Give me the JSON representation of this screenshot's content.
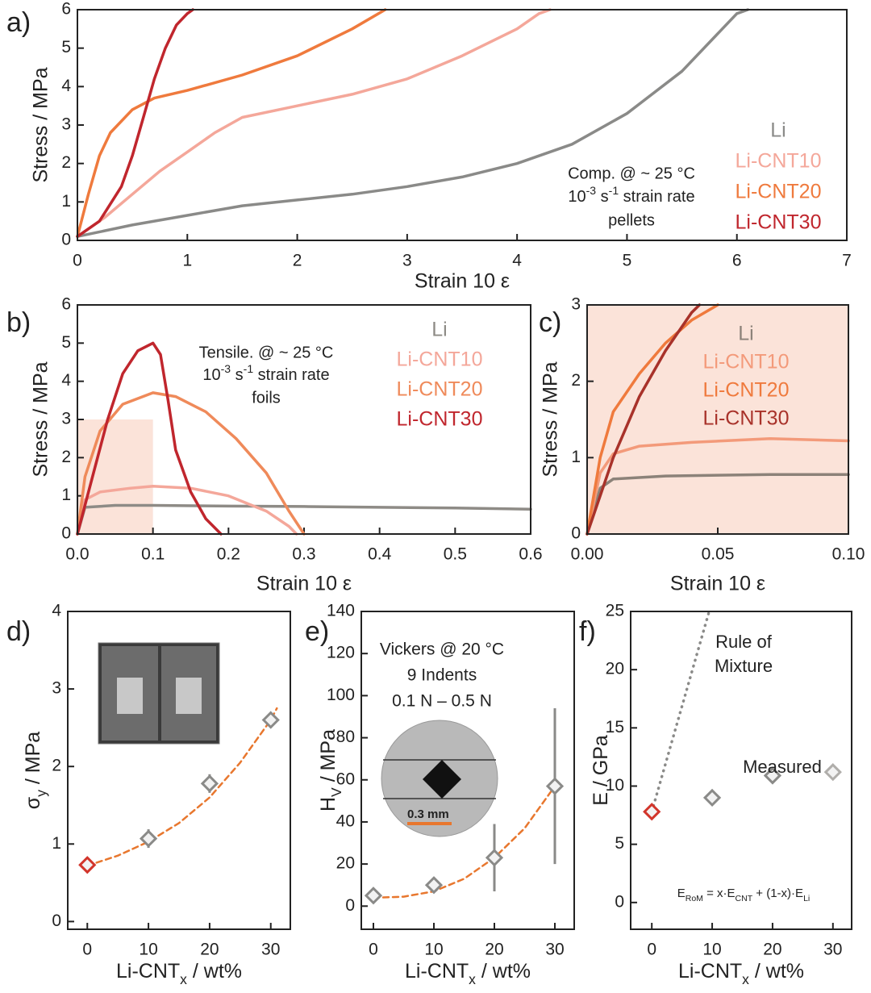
{
  "chart_data": [
    {
      "type": "line",
      "panel_label": "a)",
      "xlabel": "Strain 10 ε",
      "ylabel": "Stress / MPa",
      "xlim": [
        0,
        7
      ],
      "ylim": [
        0,
        6
      ],
      "xticks": [
        0,
        1,
        2,
        3,
        4,
        5,
        6,
        7
      ],
      "yticks": [
        0,
        1,
        2,
        3,
        4,
        5,
        6
      ],
      "series": [
        {
          "name": "Li",
          "color": "#8a8a88",
          "x": [
            0,
            0.5,
            1,
            1.5,
            2,
            2.5,
            3,
            3.5,
            4,
            4.5,
            5,
            5.5,
            6,
            6.1
          ],
          "values": [
            0.1,
            0.4,
            0.65,
            0.9,
            1.05,
            1.2,
            1.4,
            1.65,
            2.0,
            2.5,
            3.3,
            4.4,
            5.9,
            6
          ]
        },
        {
          "name": "Li-CNT10",
          "color": "#f4a79a",
          "x": [
            0,
            0.25,
            0.5,
            0.75,
            1,
            1.25,
            1.5,
            2,
            2.5,
            3,
            3.5,
            4,
            4.2,
            4.3
          ],
          "values": [
            0.1,
            0.6,
            1.2,
            1.8,
            2.3,
            2.8,
            3.2,
            3.5,
            3.8,
            4.2,
            4.8,
            5.5,
            5.9,
            6
          ]
        },
        {
          "name": "Li-CNT20",
          "color": "#ef7a3d",
          "x": [
            0,
            0.1,
            0.2,
            0.3,
            0.5,
            0.7,
            1,
            1.5,
            2,
            2.5,
            2.8
          ],
          "values": [
            0.1,
            1.2,
            2.2,
            2.8,
            3.4,
            3.7,
            3.9,
            4.3,
            4.8,
            5.5,
            6
          ]
        },
        {
          "name": "Li-CNT30",
          "color": "#c0262d",
          "x": [
            0,
            0.2,
            0.4,
            0.5,
            0.6,
            0.7,
            0.8,
            0.9,
            1.0,
            1.05
          ],
          "values": [
            0.1,
            0.5,
            1.4,
            2.2,
            3.2,
            4.2,
            5.0,
            5.6,
            5.9,
            6
          ]
        }
      ],
      "annotations": [
        [
          "Comp. @ ~ 25 °C",
          [
            {
              "text": "10"
            },
            {
              "text": "-3",
              "sup": true
            },
            {
              "text": " s"
            },
            {
              "text": "-1",
              "sup": true
            },
            {
              "text": " strain rate"
            }
          ],
          "pellets"
        ]
      ]
    },
    {
      "type": "line",
      "panel_label": "b)",
      "xlabel": "Strain 10 ε",
      "ylabel": "Stress / MPa",
      "xlim": [
        0,
        0.6
      ],
      "ylim": [
        0,
        6
      ],
      "xticks": [
        {
          "value": 0,
          "label": "0.0"
        },
        0.1,
        0.2,
        0.3,
        0.4,
        0.5,
        0.6
      ],
      "yticks": [
        0,
        1,
        2,
        3,
        4,
        5,
        6
      ],
      "zoom_region": {
        "xlim": [
          0,
          0.1
        ],
        "ylim": [
          0,
          3
        ],
        "color": "#fbe3d9"
      },
      "series": [
        {
          "name": "Li",
          "color": "#8e8b86",
          "x": [
            0,
            0.01,
            0.05,
            0.1,
            0.2,
            0.3,
            0.4,
            0.5,
            0.6
          ],
          "values": [
            0,
            0.7,
            0.75,
            0.75,
            0.73,
            0.72,
            0.7,
            0.68,
            0.65
          ]
        },
        {
          "name": "Li-CNT10",
          "color": "#f4a79a",
          "x": [
            0,
            0.01,
            0.03,
            0.07,
            0.1,
            0.15,
            0.2,
            0.25,
            0.28,
            0.29
          ],
          "values": [
            0,
            0.9,
            1.1,
            1.2,
            1.25,
            1.2,
            1.0,
            0.6,
            0.2,
            0
          ]
        },
        {
          "name": "Li-CNT20",
          "color": "#ef8a5a",
          "x": [
            0,
            0.01,
            0.03,
            0.06,
            0.1,
            0.13,
            0.17,
            0.21,
            0.25,
            0.28,
            0.3
          ],
          "values": [
            0,
            1.5,
            2.7,
            3.4,
            3.7,
            3.6,
            3.2,
            2.5,
            1.6,
            0.6,
            0
          ]
        },
        {
          "name": "Li-CNT30",
          "color": "#c0262d",
          "x": [
            0,
            0.02,
            0.04,
            0.06,
            0.08,
            0.1,
            0.11,
            0.12,
            0.13,
            0.15,
            0.17,
            0.19
          ],
          "values": [
            0,
            1.5,
            3.0,
            4.2,
            4.8,
            5.0,
            4.7,
            3.5,
            2.2,
            1.1,
            0.4,
            0
          ]
        }
      ],
      "annotations": [
        [
          "Tensile. @ ~ 25 °C",
          [
            {
              "text": "10"
            },
            {
              "text": "-3",
              "sup": true
            },
            {
              "text": " s"
            },
            {
              "text": "-1",
              "sup": true
            },
            {
              "text": " strain rate"
            }
          ],
          "foils"
        ]
      ]
    },
    {
      "type": "line",
      "panel_label": "c)",
      "xlabel": "Strain 10 ε",
      "ylabel": "Stress / MPa",
      "xlim": [
        0,
        0.1
      ],
      "ylim": [
        0,
        3
      ],
      "xticks": [
        {
          "value": 0,
          "label": "0.00"
        },
        0.05,
        {
          "value": 0.1,
          "label": "0.10"
        }
      ],
      "yticks": [
        0,
        1,
        2,
        3
      ],
      "background": "#fbe3d9",
      "series": [
        {
          "name": "Li",
          "color": "#8c8279",
          "x": [
            0,
            0.005,
            0.01,
            0.03,
            0.05,
            0.07,
            0.1
          ],
          "values": [
            0,
            0.6,
            0.72,
            0.76,
            0.77,
            0.78,
            0.78
          ]
        },
        {
          "name": "Li-CNT10",
          "color": "#f39a7a",
          "x": [
            0,
            0.005,
            0.01,
            0.02,
            0.04,
            0.07,
            0.1
          ],
          "values": [
            0,
            0.8,
            1.05,
            1.15,
            1.2,
            1.25,
            1.22
          ]
        },
        {
          "name": "Li-CNT20",
          "color": "#ef7a3d",
          "x": [
            0,
            0.005,
            0.01,
            0.02,
            0.03,
            0.04,
            0.05
          ],
          "values": [
            0,
            1.0,
            1.6,
            2.1,
            2.5,
            2.8,
            3.0
          ]
        },
        {
          "name": "Li-CNT30",
          "color": "#a8322a",
          "x": [
            0,
            0.01,
            0.02,
            0.03,
            0.04,
            0.043
          ],
          "values": [
            0,
            1.0,
            1.8,
            2.4,
            2.9,
            3.0
          ]
        }
      ],
      "annotations": []
    },
    {
      "type": "scatter",
      "panel_label": "d)",
      "xlabel": [
        {
          "text": "Li-CNT"
        },
        {
          "text": "x",
          "sub": true
        },
        {
          "text": " / wt%"
        }
      ],
      "ylabel": [
        {
          "text": "σ"
        },
        {
          "text": "y",
          "sub": true
        },
        {
          "text": " / MPa"
        }
      ],
      "xlim": [
        -3.2,
        33.2
      ],
      "ylim": [
        -0.1,
        4
      ],
      "xticks": [
        0,
        10,
        20,
        30
      ],
      "yticks": [
        0,
        1,
        2,
        3,
        4
      ],
      "series": [
        {
          "kind": "fit",
          "color": "#e8772e",
          "x": [
            0,
            5,
            10,
            15,
            20,
            25,
            30,
            31
          ],
          "values": [
            0.72,
            0.85,
            1.03,
            1.27,
            1.6,
            2.05,
            2.6,
            2.75
          ]
        },
        {
          "kind": "points",
          "colors": [
            "#d2352b",
            "#8a8a88",
            "#8a8a88",
            "#8a8a88"
          ],
          "x": [
            0,
            10,
            20,
            30
          ],
          "values": [
            0.73,
            1.07,
            1.78,
            2.6
          ],
          "errors": [
            0.05,
            0.12,
            0.12,
            0.1
          ]
        }
      ],
      "annotations": []
    },
    {
      "type": "scatter",
      "panel_label": "e)",
      "xlabel": [
        {
          "text": "Li-CNT"
        },
        {
          "text": "x",
          "sub": true
        },
        {
          "text": " / wt%"
        }
      ],
      "ylabel": [
        {
          "text": "H"
        },
        {
          "text": "V",
          "sub": true
        },
        {
          "text": " / MPa"
        }
      ],
      "xlim": [
        -2,
        33.2
      ],
      "ylim": [
        -11,
        140
      ],
      "xticks": [
        0,
        10,
        20,
        30
      ],
      "yticks": [
        0,
        20,
        40,
        60,
        80,
        100,
        120,
        140
      ],
      "inset_label": "0.3 mm",
      "series": [
        {
          "kind": "fit",
          "color": "#e8772e",
          "x": [
            0,
            5,
            10,
            15,
            20,
            25,
            30
          ],
          "values": [
            4,
            4.5,
            7,
            13,
            23,
            37,
            57
          ]
        },
        {
          "kind": "points",
          "colors": [
            "#8a8a88",
            "#8a8a88",
            "#8a8a88",
            "#8a8a88"
          ],
          "x": [
            0,
            10,
            20,
            30
          ],
          "values": [
            5,
            10,
            23,
            57
          ],
          "errors": [
            3,
            2,
            16,
            37
          ]
        }
      ],
      "annotations": [
        [
          "Vickers @ 20 °C",
          "9 Indents",
          "0.1 N – 0.5 N"
        ]
      ]
    },
    {
      "type": "scatter",
      "panel_label": "f)",
      "xlabel": [
        {
          "text": "Li-CNT"
        },
        {
          "text": "x",
          "sub": true
        },
        {
          "text": " / wt%"
        }
      ],
      "ylabel": [
        {
          "text": "E"
        },
        {
          "text": " / GPa"
        }
      ],
      "xlim": [
        -3.5,
        33.1
      ],
      "ylim": [
        -2.3,
        25
      ],
      "xticks": [
        0,
        10,
        20,
        30
      ],
      "yticks": [
        0,
        5,
        10,
        15,
        20,
        25
      ],
      "series": [
        {
          "kind": "dotted",
          "color": "#8a8a88",
          "x": [
            0,
            9.5
          ],
          "values": [
            7.8,
            25
          ]
        },
        {
          "kind": "points",
          "colors": [
            "#d2352b",
            "#8a8a88",
            "#8a8a88",
            "#b0aeab"
          ],
          "x": [
            0,
            10,
            20,
            30
          ],
          "values": [
            7.8,
            9,
            10.9,
            11.2
          ],
          "errors": [
            0.3,
            0.3,
            0.5,
            0.5
          ]
        }
      ],
      "annotations": [
        [
          "Rule of",
          "Mixture"
        ],
        [
          "Measured"
        ],
        [
          [
            {
              "text": "E"
            },
            {
              "text": "RoM",
              "sub": true
            },
            {
              "text": " = x·E"
            },
            {
              "text": "CNT",
              "sub": true
            },
            {
              "text": " + (1-x)·E"
            },
            {
              "text": "Li",
              "sub": true
            }
          ]
        ]
      ]
    }
  ]
}
